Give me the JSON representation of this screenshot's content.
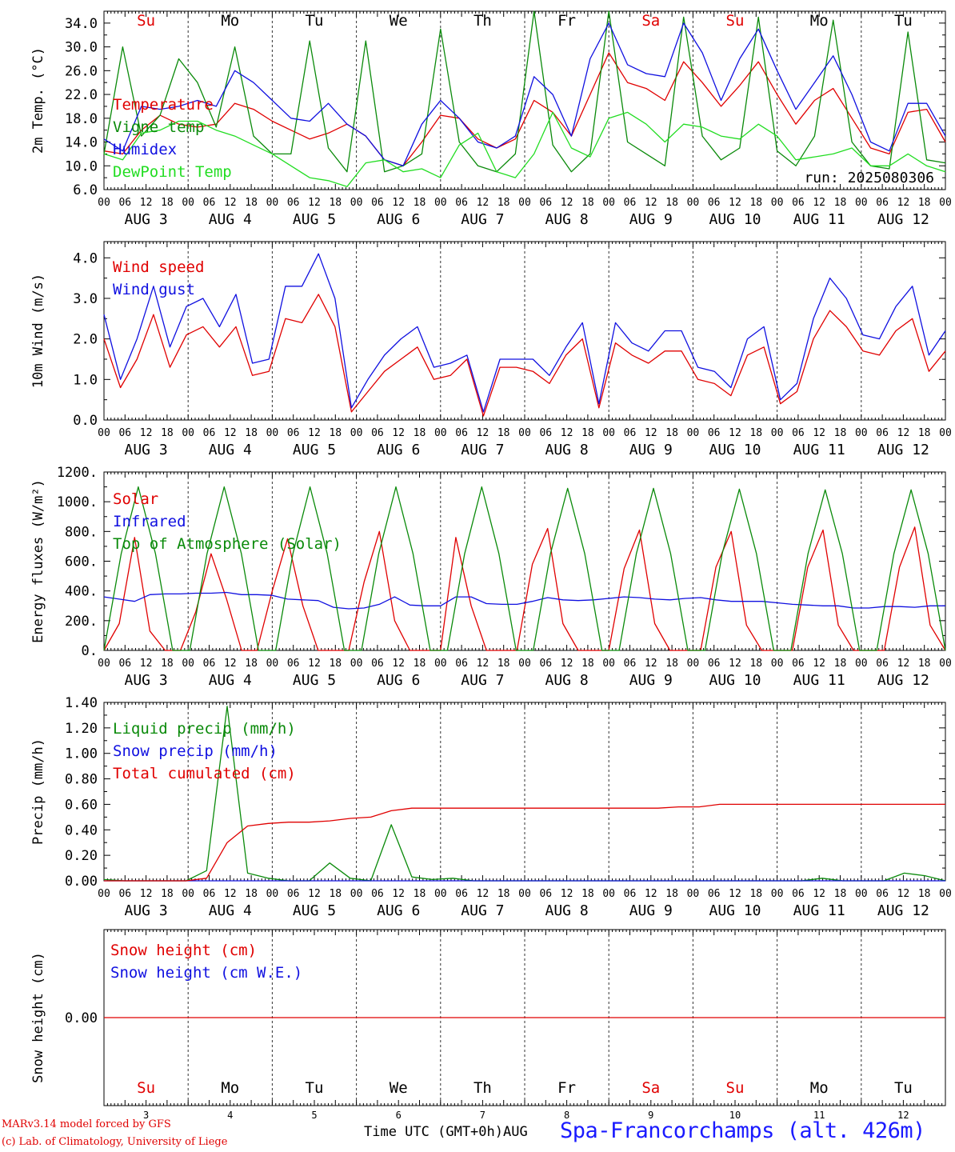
{
  "colors": {
    "red": "#e00000",
    "green": "#0a8a0a",
    "blue": "#1010e0",
    "lightgreen": "#22dd22",
    "station": "#1a1aff"
  },
  "days": [
    "3",
    "4",
    "5",
    "6",
    "7",
    "8",
    "9",
    "10",
    "11",
    "12"
  ],
  "day_names": [
    "Su",
    "Mo",
    "Tu",
    "We",
    "Th",
    "Fr",
    "Sa",
    "Su",
    "Mo",
    "Tu"
  ],
  "weekend_days": [
    0,
    6,
    7
  ],
  "hour_ticks": [
    "00",
    "06",
    "12",
    "18"
  ],
  "month": "AUG",
  "footer": {
    "model": "MARv3.14 model forced by GFS",
    "copyright": "(c) Lab. of Climatology, University of Liege",
    "xlabel": "Time UTC (GMT+0h)",
    "month_label": "AUG",
    "station": "Spa-Francorchamps (alt. 426m)"
  },
  "chart_data": [
    {
      "type": "line",
      "ylabel": "2m Temp. (°C)",
      "ylim": [
        6.0,
        36.0
      ],
      "yticks": [
        "6.0",
        "10.0",
        "14.0",
        "18.0",
        "22.0",
        "26.0",
        "30.0",
        "34.0"
      ],
      "yvals": [
        6,
        10,
        14,
        18,
        22,
        26,
        30,
        34
      ],
      "annotation": "run: 2025080306",
      "x_step_hours": 6,
      "series": [
        {
          "name": "Temperature",
          "color": "red",
          "values": [
            12.5,
            12.0,
            16.0,
            18.5,
            17.0,
            16.5,
            17.0,
            20.5,
            19.5,
            17.5,
            16.0,
            14.5,
            15.5,
            17.0,
            15.0,
            11.0,
            10.0,
            14.0,
            18.5,
            18.0,
            14.5,
            13.0,
            14.5,
            21.0,
            19.0,
            15.0,
            22.0,
            29.0,
            24.0,
            23.0,
            21.0,
            27.5,
            24.0,
            20.0,
            23.5,
            27.5,
            22.0,
            17.0,
            21.0,
            23.0,
            18.0,
            13.0,
            12.0,
            19.0,
            19.5,
            14.0
          ]
        },
        {
          "name": "Vigne temp",
          "color": "green",
          "values": [
            12.0,
            30.0,
            15.0,
            18.5,
            28.0,
            24.0,
            16.5,
            30.0,
            15.0,
            12.0,
            12.0,
            31.0,
            13.0,
            9.0,
            31.0,
            9.0,
            10.0,
            12.0,
            33.0,
            14.0,
            10.0,
            9.0,
            12.0,
            36.0,
            13.5,
            9.0,
            12.0,
            36.0,
            14.0,
            12.0,
            10.0,
            35.0,
            15.0,
            11.0,
            13.0,
            35.0,
            12.5,
            10.0,
            15.0,
            34.5,
            14.0,
            10.0,
            9.5,
            32.5,
            11.0,
            10.5
          ]
        },
        {
          "name": "Humidex",
          "color": "blue",
          "values": [
            14.5,
            12.5,
            20.0,
            19.5,
            20.0,
            21.0,
            20.0,
            26.0,
            24.0,
            21.0,
            18.0,
            17.5,
            20.5,
            17.0,
            15.0,
            11.0,
            10.0,
            17.0,
            21.0,
            18.0,
            14.0,
            13.0,
            15.0,
            25.0,
            22.0,
            15.0,
            28.0,
            34.0,
            27.0,
            25.5,
            25.0,
            34.0,
            29.0,
            21.0,
            28.0,
            33.0,
            26.0,
            19.5,
            24.0,
            28.5,
            22.0,
            14.0,
            12.5,
            20.5,
            20.5,
            15.0
          ]
        },
        {
          "name": "DewPoint Temp",
          "color": "lightgreen",
          "values": [
            12.0,
            11.0,
            15.5,
            16.0,
            17.5,
            17.5,
            16.0,
            15.0,
            13.5,
            12.0,
            10.0,
            8.0,
            7.5,
            6.5,
            10.5,
            11.0,
            9.0,
            9.5,
            8.0,
            13.5,
            15.5,
            9.0,
            8.0,
            12.0,
            19.0,
            13.0,
            11.5,
            18.0,
            19.0,
            17.0,
            14.0,
            17.0,
            16.5,
            15.0,
            14.5,
            17.0,
            15.0,
            11.0,
            11.5,
            12.0,
            13.0,
            10.0,
            10.0,
            12.0,
            10.0,
            9.0
          ]
        }
      ]
    },
    {
      "type": "line",
      "ylabel": "10m Wind (m/s)",
      "ylim": [
        0.0,
        4.4
      ],
      "yticks": [
        "0.0",
        "1.0",
        "2.0",
        "3.0",
        "4.0"
      ],
      "yvals": [
        0,
        1,
        2,
        3,
        4
      ],
      "x_step_hours": 6,
      "series": [
        {
          "name": "Wind speed",
          "color": "red",
          "values": [
            2.0,
            0.8,
            1.5,
            2.6,
            1.3,
            2.1,
            2.3,
            1.8,
            2.3,
            1.1,
            1.2,
            2.5,
            2.4,
            3.1,
            2.3,
            0.2,
            0.7,
            1.2,
            1.5,
            1.8,
            1.0,
            1.1,
            1.5,
            0.1,
            1.3,
            1.3,
            1.2,
            0.9,
            1.6,
            2.0,
            0.3,
            1.9,
            1.6,
            1.4,
            1.7,
            1.7,
            1.0,
            0.9,
            0.6,
            1.6,
            1.8,
            0.4,
            0.7,
            2.0,
            2.7,
            2.3,
            1.7,
            1.6,
            2.2,
            2.5,
            1.2,
            1.7
          ]
        },
        {
          "name": "Wind gust",
          "color": "blue",
          "values": [
            2.6,
            1.0,
            2.0,
            3.3,
            1.8,
            2.8,
            3.0,
            2.3,
            3.1,
            1.4,
            1.5,
            3.3,
            3.3,
            4.1,
            3.0,
            0.3,
            1.0,
            1.6,
            2.0,
            2.3,
            1.3,
            1.4,
            1.6,
            0.2,
            1.5,
            1.5,
            1.5,
            1.1,
            1.8,
            2.4,
            0.4,
            2.4,
            1.9,
            1.7,
            2.2,
            2.2,
            1.3,
            1.2,
            0.8,
            2.0,
            2.3,
            0.5,
            0.9,
            2.5,
            3.5,
            3.0,
            2.1,
            2.0,
            2.8,
            3.3,
            1.6,
            2.2
          ]
        }
      ]
    },
    {
      "type": "line",
      "ylabel": "Energy fluxes (W/m²)",
      "ylim": [
        0,
        1200
      ],
      "yticks": [
        "0.",
        "200.",
        "400.",
        "600.",
        "800.",
        "1000.",
        "1200."
      ],
      "yvals": [
        0,
        200,
        400,
        600,
        800,
        1000,
        1200
      ],
      "x_step_hours": 6,
      "series": [
        {
          "name": "Solar",
          "color": "red",
          "values": [
            0,
            180,
            760,
            130,
            0,
            0,
            260,
            650,
            350,
            0,
            0,
            400,
            750,
            300,
            0,
            0,
            0,
            460,
            800,
            200,
            0,
            0,
            0,
            760,
            300,
            0,
            0,
            0,
            580,
            820,
            180,
            0,
            0,
            0,
            550,
            810,
            180,
            0,
            0,
            0,
            560,
            800,
            170,
            0,
            0,
            0,
            560,
            810,
            170,
            0,
            0,
            0,
            560,
            830,
            170,
            0
          ]
        },
        {
          "name": "Infrared",
          "color": "blue",
          "values": [
            360,
            345,
            330,
            375,
            380,
            380,
            385,
            385,
            390,
            375,
            375,
            370,
            345,
            340,
            335,
            290,
            280,
            285,
            310,
            360,
            305,
            300,
            300,
            360,
            360,
            315,
            310,
            310,
            330,
            355,
            340,
            335,
            340,
            350,
            360,
            355,
            345,
            340,
            350,
            355,
            340,
            330,
            330,
            330,
            320,
            310,
            305,
            300,
            300,
            285,
            285,
            295,
            295,
            290,
            300,
            300
          ]
        },
        {
          "name": "Top of Atmosphere (Solar)",
          "color": "green",
          "values": [
            0,
            650,
            1100,
            650,
            0,
            0,
            650,
            1100,
            650,
            0,
            0,
            650,
            1100,
            650,
            0,
            0,
            650,
            1100,
            650,
            0,
            0,
            650,
            1100,
            650,
            0,
            0,
            650,
            1090,
            650,
            0,
            0,
            650,
            1090,
            650,
            0,
            0,
            650,
            1085,
            650,
            0,
            0,
            650,
            1080,
            650,
            0,
            0,
            650,
            1080,
            650,
            0
          ]
        }
      ]
    },
    {
      "type": "line",
      "ylabel": "Precip (mm/h)",
      "ylim": [
        0.0,
        1.4
      ],
      "yticks": [
        "0.00",
        "0.20",
        "0.40",
        "0.60",
        "0.80",
        "1.00",
        "1.20",
        "1.40"
      ],
      "yvals": [
        0,
        0.2,
        0.4,
        0.6,
        0.8,
        1.0,
        1.2,
        1.4
      ],
      "x_step_hours": 6,
      "series": [
        {
          "name": "Liquid precip (mm/h)",
          "color": "green",
          "values": [
            0.01,
            0.0,
            0.0,
            0.0,
            0.0,
            0.08,
            1.37,
            0.06,
            0.02,
            0.0,
            0.0,
            0.14,
            0.02,
            0.0,
            0.44,
            0.03,
            0.01,
            0.02,
            0.0,
            0.0,
            0.0,
            0.0,
            0.0,
            0.0,
            0.0,
            0.0,
            0.0,
            0.0,
            0.0,
            0.0,
            0.0,
            0.0,
            0.0,
            0.0,
            0.0,
            0.02,
            0.0,
            0.0,
            0.0,
            0.06,
            0.04,
            0.0
          ]
        },
        {
          "name": "Snow precip (mm/h)",
          "color": "blue",
          "values": [
            0,
            0
          ]
        },
        {
          "name": "Total cumulated (cm)",
          "color": "red",
          "values": [
            0.0,
            0.0,
            0.0,
            0.0,
            0.0,
            0.02,
            0.3,
            0.43,
            0.45,
            0.46,
            0.46,
            0.47,
            0.49,
            0.5,
            0.55,
            0.57,
            0.57,
            0.57,
            0.57,
            0.57,
            0.57,
            0.57,
            0.57,
            0.57,
            0.57,
            0.57,
            0.57,
            0.57,
            0.58,
            0.58,
            0.6,
            0.6,
            0.6,
            0.6,
            0.6,
            0.6,
            0.6,
            0.6,
            0.6,
            0.6,
            0.6,
            0.6
          ]
        }
      ]
    },
    {
      "type": "line",
      "ylabel": "Snow height (cm)",
      "ylim": [
        -1,
        1
      ],
      "yticks": [
        "0.00"
      ],
      "yvals": [
        0
      ],
      "x_step_hours": 6,
      "series": [
        {
          "name": "Snow height (cm)",
          "color": "red",
          "values": [
            0,
            0
          ]
        },
        {
          "name": "Snow height (cm W.E.)",
          "color": "blue",
          "values": []
        }
      ]
    }
  ]
}
